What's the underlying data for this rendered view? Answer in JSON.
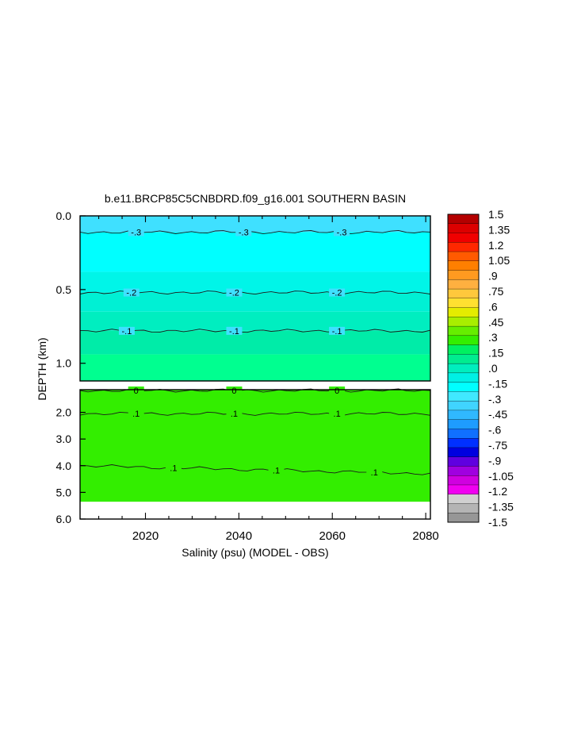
{
  "chart_data": {
    "type": "heatmap",
    "title": "b.e11.BRCP85C5CNBDRD.f09_g16.001 SOUTHERN BASIN",
    "xlabel": "Salinity (psu) (MODEL - OBS)",
    "ylabel": "DEPTH (km)",
    "xlim": [
      2006,
      2081
    ],
    "x_ticks": [
      "2020",
      "2040",
      "2060",
      "2080"
    ],
    "panels": [
      {
        "name": "upper",
        "ylim": [
          0.0,
          1.12
        ],
        "y_ticks": [
          "0.0",
          "0.5",
          "1.0"
        ],
        "bands": [
          {
            "from": 0.0,
            "to": 0.11,
            "value": -0.375,
            "color": "#3fe0ff"
          },
          {
            "from": 0.11,
            "to": 0.38,
            "value": -0.3,
            "color": "#00ffff"
          },
          {
            "from": 0.38,
            "to": 0.52,
            "value": -0.2,
            "color": "#00f5e8"
          },
          {
            "from": 0.52,
            "to": 0.65,
            "value": -0.2,
            "color": "#00f0d4"
          },
          {
            "from": 0.65,
            "to": 0.78,
            "value": -0.1,
            "color": "#00eec0"
          },
          {
            "from": 0.78,
            "to": 0.94,
            "value": -0.1,
            "color": "#00eca8"
          },
          {
            "from": 0.94,
            "to": 1.12,
            "value": -0.05,
            "color": "#00ff90"
          }
        ],
        "contours": [
          {
            "label": "-.3",
            "depth": 0.11,
            "label_x": [
              2018,
              2041,
              2062
            ]
          },
          {
            "label": "-.2",
            "depth": 0.52,
            "label_x": [
              2017,
              2039,
              2061
            ]
          },
          {
            "label": "-.1",
            "depth": 0.78,
            "label_x": [
              2016,
              2039,
              2061
            ]
          }
        ]
      },
      {
        "name": "lower",
        "ylim": [
          1.15,
          6.0
        ],
        "y_ticks": [
          "2.0",
          "3.0",
          "4.0",
          "5.0",
          "6.0"
        ],
        "bands": [
          {
            "from": 1.15,
            "to": 5.35,
            "value": 0.1,
            "color": "#33ee00"
          }
        ],
        "contours": [
          {
            "label": "0",
            "depth": 1.18,
            "label_x": [
              2018,
              2039,
              2061
            ]
          },
          {
            "label": ".1",
            "depth": 2.05,
            "label_x": [
              2018,
              2039,
              2061
            ]
          },
          {
            "label": ".1",
            "depth": 4.0,
            "label_x": [
              2026,
              2048,
              2069
            ]
          }
        ]
      }
    ],
    "colorbar": {
      "labels": [
        "1.5",
        "1.35",
        "1.2",
        "1.05",
        ".9",
        ".75",
        ".6",
        ".45",
        ".3",
        ".15",
        ".0",
        "-.15",
        "-.3",
        "-.45",
        "-.6",
        "-.75",
        "-.9",
        "-1.05",
        "-1.2",
        "-1.35",
        "-1.5"
      ],
      "colors": [
        "#b40000",
        "#dc0000",
        "#f00000",
        "#ff2800",
        "#ff5a00",
        "#ff7f00",
        "#ff9a20",
        "#ffb040",
        "#ffc83c",
        "#ffe030",
        "#e4ec00",
        "#a8ee00",
        "#66ee00",
        "#33ee00",
        "#00f060",
        "#00ec90",
        "#00eebe",
        "#00f0e4",
        "#00ffff",
        "#40e8ff",
        "#40d4ff",
        "#30b8ff",
        "#1e9cff",
        "#1070ff",
        "#0030ff",
        "#0000e0",
        "#6000e0",
        "#a000e0",
        "#d000e0",
        "#f000f0",
        "#d0d0d0",
        "#b4b4b4",
        "#969696"
      ]
    }
  }
}
